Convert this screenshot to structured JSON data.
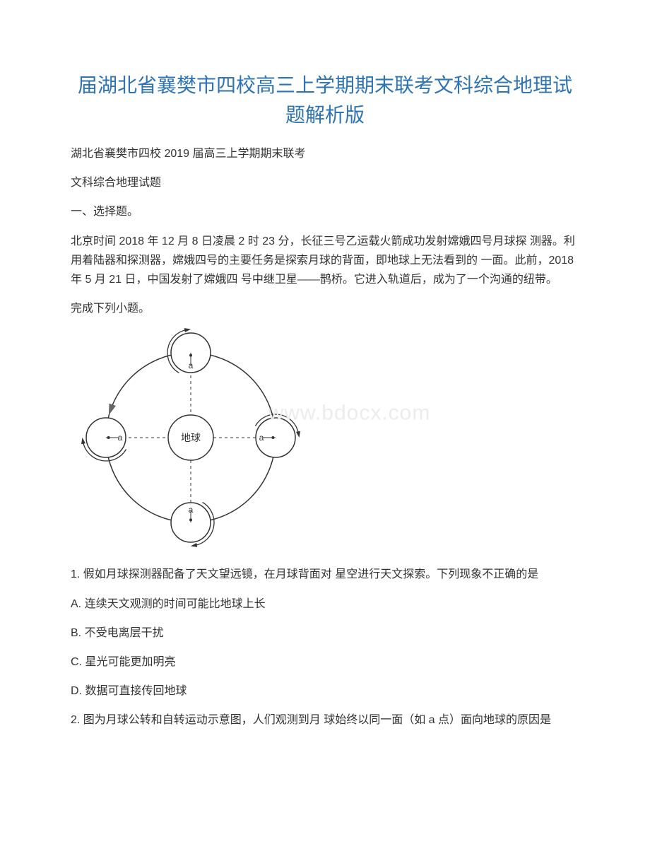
{
  "title": "届湖北省襄樊市四校高三上学期期末联考文科综合地理试题解析版",
  "p1": "湖北省襄樊市四校 2019 届高三上学期期末联考",
  "p2": "文科综合地理试题",
  "p3": "一、选择题。",
  "p4": "北京时间 2018 年 12 月 8 日凌晨 2 时 23 分，长征三号乙运载火箭成功发射嫦娥四号月球探 测器。利用着陆器和探测器，嫦娥四号的主要任务是探索月球的背面，即地球上无法看到的 一面。此前，2018 年 5 月 21 日，中国发射了嫦娥四 号中继卫星——鹊桥。它进入轨道后，成为了一个沟通的纽带。",
  "p5": "完成下列小题。",
  "q1": "1. 假如月球探测器配备了天文望远镜，在月球背面对 星空进行天文探索。下列现象不正确的是",
  "optA": "A. 连续天文观测的时间可能比地球上长",
  "optB": "B. 不受电离层干扰",
  "optC": "C. 星光可能更加明亮",
  "optD": "D. 数据可直接传回地球",
  "q2": "2. 图为月球公转和自转运动示意图，人们观测到月 球始终以同一面（如 a 点）面向地球的原因是",
  "watermark": "www.bdocx.com",
  "diagram": {
    "orbitRadius": 120,
    "smallRadius": 28,
    "earthRadius": 32,
    "earthLabel": "地球",
    "stroke": "#333333",
    "strokeWidth": 1.5,
    "arrowColor": "#666666",
    "labelA": "a"
  }
}
